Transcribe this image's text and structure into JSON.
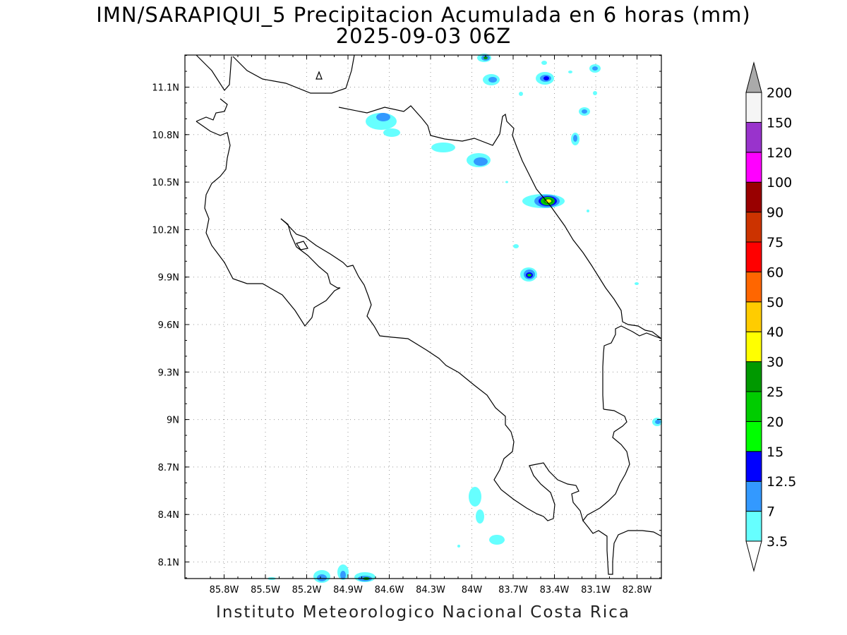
{
  "title": {
    "line1": "IMN/SARAPIQUI_5 Precipitacion Acumulada en 6 horas (mm)",
    "line2": "2025-09-03 06Z"
  },
  "footer": "Instituto Meteorologico Nacional Costa Rica",
  "map": {
    "lon_labels": [
      "85.8W",
      "85.5W",
      "85.2W",
      "84.9W",
      "84.6W",
      "84.3W",
      "84W",
      "83.7W",
      "83.4W",
      "83.1W",
      "82.8W"
    ],
    "lat_labels": [
      "11.1N",
      "10.8N",
      "10.5N",
      "10.2N",
      "9.9N",
      "9.6N",
      "9.3N",
      "9N",
      "8.7N",
      "8.4N",
      "8.1N"
    ],
    "lon_values": [
      -85.8,
      -85.5,
      -85.2,
      -84.9,
      -84.6,
      -84.3,
      -84.0,
      -83.7,
      -83.4,
      -83.1,
      -82.8
    ],
    "lat_values": [
      11.1,
      10.8,
      10.5,
      10.2,
      9.9,
      9.6,
      9.3,
      9.0,
      8.7,
      8.4,
      8.1
    ],
    "grid": true
  },
  "colorbar": {
    "labels": [
      "3.5",
      "7",
      "12.5",
      "15",
      "20",
      "25",
      "30",
      "40",
      "50",
      "60",
      "75",
      "90",
      "100",
      "120",
      "150",
      "200"
    ],
    "colors": [
      "#ffffff",
      "#66ffff",
      "#3399ff",
      "#0000ff",
      "#00ff00",
      "#00cc00",
      "#009900",
      "#ffff00",
      "#ffcc00",
      "#ff6600",
      "#ff0000",
      "#cc3300",
      "#990000",
      "#ff00ff",
      "#9933cc",
      "#f5f5f5",
      "#aaaaaa"
    ]
  }
}
